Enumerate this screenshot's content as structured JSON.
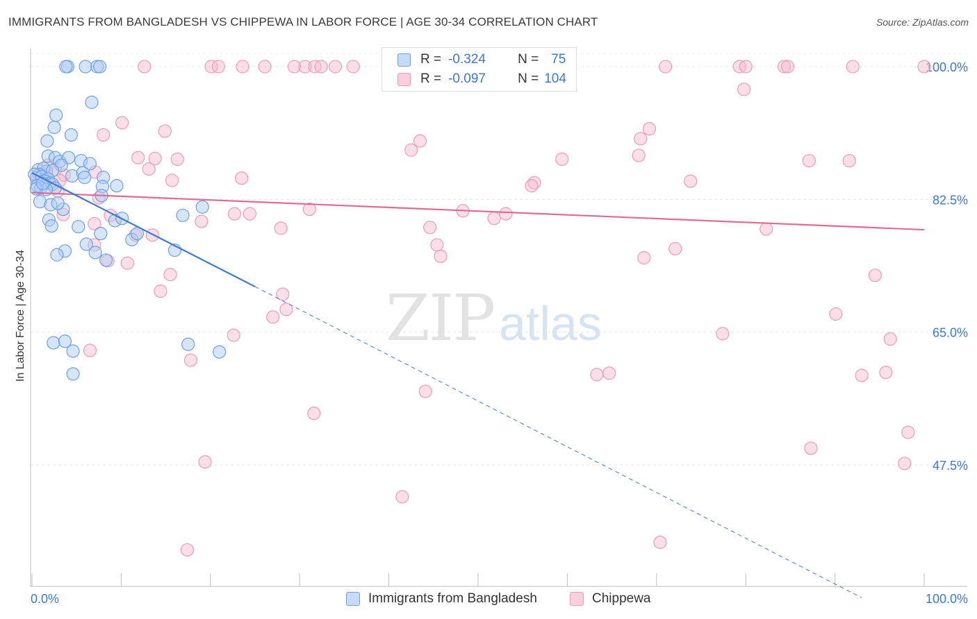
{
  "title": "IMMIGRANTS FROM BANGLADESH VS CHIPPEWA IN LABOR FORCE | AGE 30-34 CORRELATION CHART",
  "source": "Source: ZipAtlas.com",
  "legend": {
    "r_label": "R =",
    "n_label": "N =",
    "series1": {
      "r": "-0.324",
      "n": "75"
    },
    "series2": {
      "r": "-0.097",
      "n": "104"
    }
  },
  "colors": {
    "blue": "#3c78d8",
    "blue_fill": "#aecbf5",
    "pink": "#e06a95",
    "pink_fill": "#f7b9cd",
    "tick_blue": "#3c78d8",
    "grid": "#e3e3e3"
  },
  "chart_data": {
    "type": "scatter",
    "title": "IMMIGRANTS FROM BANGLADESH VS CHIPPEWA IN LABOR FORCE | AGE 30-34 CORRELATION CHART",
    "xlabel": "",
    "ylabel": "In Labor Force | Age 30-34",
    "x_tick_labels": [
      "0.0%",
      "100.0%"
    ],
    "y_tick_labels": [
      "47.5%",
      "65.0%",
      "82.5%",
      "100.0%"
    ],
    "xlim": [
      0,
      100
    ],
    "ylim": [
      30,
      102
    ],
    "yticks": [
      47.5,
      65.0,
      82.5,
      100.0
    ],
    "grid": true,
    "legend_position": "top-center",
    "watermark": "ZIPatlas",
    "series": [
      {
        "name": "Immigrants from Bangladesh",
        "color": "#3c78d8",
        "R": -0.324,
        "N": 75,
        "trend": {
          "x0": 0,
          "y0": 86.0,
          "x1": 25,
          "y1": 71.0,
          "dash_to_x": 93,
          "dash_to_y": 30.0
        },
        "points": [
          [
            4.0,
            100
          ],
          [
            3.8,
            100
          ],
          [
            6.0,
            100
          ],
          [
            7.3,
            100
          ],
          [
            7.6,
            100
          ],
          [
            6.7,
            95.3
          ],
          [
            2.7,
            93.6
          ],
          [
            2.5,
            92.0
          ],
          [
            4.4,
            91.0
          ],
          [
            1.7,
            90.2
          ],
          [
            1.8,
            88.2
          ],
          [
            2.6,
            88.0
          ],
          [
            3.1,
            87.5
          ],
          [
            4.1,
            88.0
          ],
          [
            5.5,
            87.6
          ],
          [
            6.5,
            87.2
          ],
          [
            3.3,
            87.0
          ],
          [
            0.7,
            86.4
          ],
          [
            1.6,
            86.2
          ],
          [
            1.3,
            86.6
          ],
          [
            2.3,
            86.3
          ],
          [
            0.8,
            85.8
          ],
          [
            0.5,
            85.3
          ],
          [
            0.3,
            85.8
          ],
          [
            1.1,
            85.5
          ],
          [
            1.8,
            85.2
          ],
          [
            1.4,
            84.9
          ],
          [
            2.0,
            84.6
          ],
          [
            2.3,
            84.5
          ],
          [
            0.6,
            84.3
          ],
          [
            1.0,
            84.0
          ],
          [
            2.6,
            84.0
          ],
          [
            1.6,
            83.8
          ],
          [
            0.5,
            83.9
          ],
          [
            1.2,
            84.6
          ],
          [
            4.5,
            85.6
          ],
          [
            5.7,
            86.0
          ],
          [
            5.9,
            85.4
          ],
          [
            8.0,
            85.4
          ],
          [
            9.5,
            84.3
          ],
          [
            7.9,
            84.2
          ],
          [
            7.8,
            83.0
          ],
          [
            0.9,
            82.2
          ],
          [
            2.1,
            81.8
          ],
          [
            3.5,
            81.2
          ],
          [
            2.9,
            82.0
          ],
          [
            19.1,
            81.5
          ],
          [
            1.9,
            79.8
          ],
          [
            2.2,
            79.0
          ],
          [
            9.3,
            79.7
          ],
          [
            10.1,
            80.0
          ],
          [
            16.9,
            80.4
          ],
          [
            7.7,
            78.0
          ],
          [
            5.2,
            78.9
          ],
          [
            11.2,
            77.2
          ],
          [
            11.8,
            78.0
          ],
          [
            6.1,
            76.6
          ],
          [
            7.1,
            75.5
          ],
          [
            3.7,
            75.7
          ],
          [
            2.8,
            75.2
          ],
          [
            16.0,
            75.8
          ],
          [
            8.3,
            74.5
          ],
          [
            2.4,
            63.6
          ],
          [
            3.7,
            63.8
          ],
          [
            4.6,
            62.5
          ],
          [
            17.5,
            63.4
          ],
          [
            21.0,
            62.4
          ],
          [
            4.6,
            59.5
          ]
        ]
      },
      {
        "name": "Chippewa",
        "color": "#e06a95",
        "R": -0.097,
        "N": 104,
        "trend": {
          "x0": 0,
          "y0": 83.4,
          "x1": 100,
          "y1": 78.5
        },
        "points": [
          [
            12.6,
            100
          ],
          [
            20.1,
            100
          ],
          [
            20.9,
            100
          ],
          [
            23.6,
            100
          ],
          [
            26.1,
            100
          ],
          [
            29.4,
            100
          ],
          [
            30.6,
            100
          ],
          [
            31.7,
            100
          ],
          [
            32.4,
            100
          ],
          [
            34.0,
            100
          ],
          [
            36.0,
            100
          ],
          [
            40.4,
            100
          ],
          [
            42.0,
            100
          ],
          [
            71.0,
            100
          ],
          [
            79.3,
            100
          ],
          [
            80.0,
            100
          ],
          [
            84.3,
            100
          ],
          [
            84.7,
            100
          ],
          [
            92.0,
            100
          ],
          [
            100.0,
            100
          ],
          [
            79.8,
            97.0
          ],
          [
            8.0,
            91.0
          ],
          [
            10.1,
            92.6
          ],
          [
            14.9,
            91.5
          ],
          [
            42.5,
            89.0
          ],
          [
            43.5,
            90.2
          ],
          [
            68.2,
            90.5
          ],
          [
            69.2,
            91.8
          ],
          [
            68.0,
            88.3
          ],
          [
            11.9,
            88.0
          ],
          [
            13.1,
            86.5
          ],
          [
            13.8,
            87.9
          ],
          [
            16.3,
            87.8
          ],
          [
            59.4,
            87.8
          ],
          [
            87.1,
            87.6
          ],
          [
            91.6,
            87.6
          ],
          [
            1.8,
            87.0
          ],
          [
            2.6,
            86.4
          ],
          [
            3.6,
            85.7
          ],
          [
            0.6,
            85.6
          ],
          [
            1.0,
            85.2
          ],
          [
            3.1,
            85.0
          ],
          [
            15.7,
            85.0
          ],
          [
            23.5,
            85.3
          ],
          [
            56.3,
            84.7
          ],
          [
            56.0,
            84.3
          ],
          [
            73.8,
            84.9
          ],
          [
            7.1,
            86.1
          ],
          [
            2.9,
            83.6
          ],
          [
            7.5,
            82.7
          ],
          [
            8.8,
            80.4
          ],
          [
            22.7,
            80.6
          ],
          [
            24.4,
            80.6
          ],
          [
            31.1,
            81.2
          ],
          [
            48.3,
            81.0
          ],
          [
            53.1,
            80.6
          ],
          [
            51.8,
            80.0
          ],
          [
            19.0,
            79.6
          ],
          [
            7.0,
            79.3
          ],
          [
            3.5,
            80.5
          ],
          [
            27.9,
            78.7
          ],
          [
            44.6,
            78.8
          ],
          [
            82.3,
            78.6
          ],
          [
            11.6,
            77.8
          ],
          [
            13.5,
            77.8
          ],
          [
            45.4,
            76.5
          ],
          [
            68.6,
            74.8
          ],
          [
            72.1,
            76.0
          ],
          [
            7.0,
            76.5
          ],
          [
            10.7,
            74.1
          ],
          [
            8.5,
            74.4
          ],
          [
            15.5,
            72.6
          ],
          [
            14.4,
            70.4
          ],
          [
            45.8,
            75.0
          ],
          [
            94.5,
            72.5
          ],
          [
            28.1,
            70.0
          ],
          [
            28.5,
            68.0
          ],
          [
            27.0,
            67.0
          ],
          [
            90.1,
            67.4
          ],
          [
            77.4,
            64.8
          ],
          [
            96.2,
            64.1
          ],
          [
            22.6,
            64.6
          ],
          [
            17.8,
            61.3
          ],
          [
            6.5,
            62.6
          ],
          [
            64.7,
            59.6
          ],
          [
            63.3,
            59.4
          ],
          [
            95.7,
            59.7
          ],
          [
            93.0,
            59.3
          ],
          [
            44.1,
            57.2
          ],
          [
            31.6,
            54.3
          ],
          [
            98.2,
            51.8
          ],
          [
            87.3,
            49.7
          ],
          [
            19.4,
            47.9
          ],
          [
            97.8,
            47.7
          ],
          [
            41.5,
            43.3
          ],
          [
            70.4,
            37.3
          ],
          [
            17.4,
            36.3
          ]
        ]
      }
    ]
  }
}
